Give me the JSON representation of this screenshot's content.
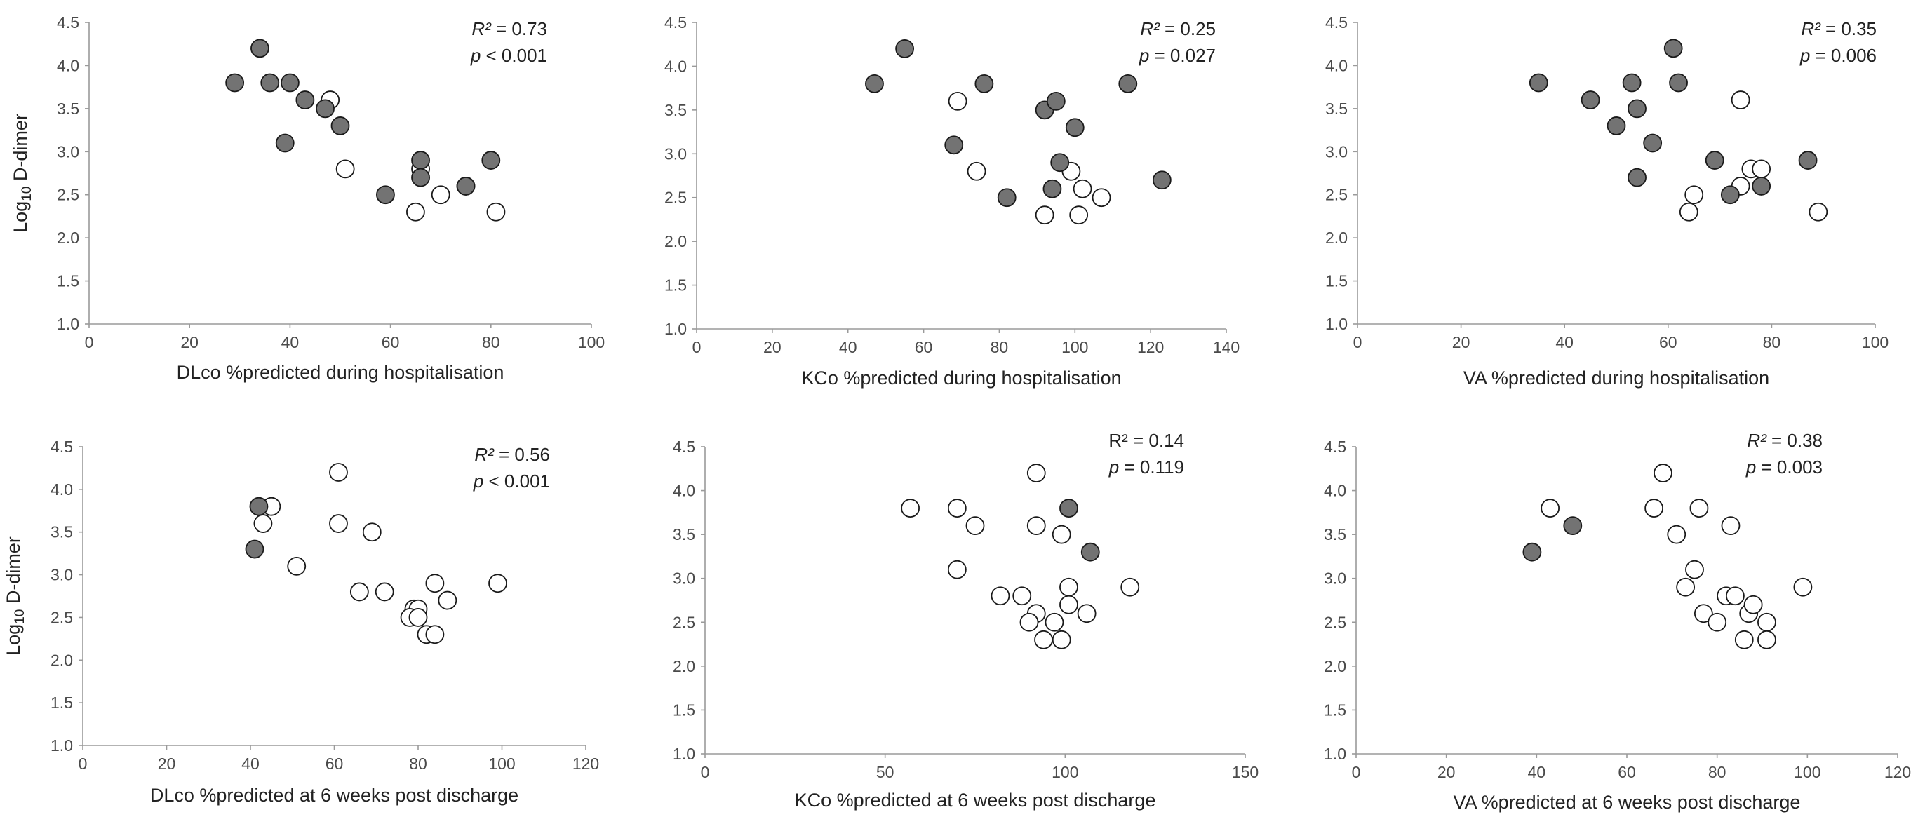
{
  "colors": {
    "filled": "#737373",
    "open": "#ffffff",
    "stroke": "#1a1a1a"
  },
  "chart_data": [
    {
      "type": "scatter",
      "xlabel": "DLco %predicted during hospitalisation",
      "ylabel": "Log10 D-dimer",
      "xlim": [
        0,
        100
      ],
      "xticks": [
        "0",
        "20",
        "40",
        "60",
        "80",
        "100"
      ],
      "ylim": [
        1.0,
        4.5
      ],
      "yticks": [
        "1.0",
        "1.5",
        "2.0",
        "2.5",
        "3.0",
        "3.5",
        "4.0",
        "4.5"
      ],
      "r2_label": "R² = 0.73",
      "p_label": "p < 0.001",
      "r2_italic": true,
      "filled": [
        [
          29,
          3.8
        ],
        [
          34,
          4.2
        ],
        [
          36,
          3.8
        ],
        [
          40,
          3.8
        ],
        [
          43,
          3.6
        ],
        [
          47,
          3.5
        ],
        [
          50,
          3.3
        ],
        [
          39,
          3.1
        ],
        [
          66,
          2.9
        ],
        [
          66,
          2.7
        ],
        [
          59,
          2.5
        ],
        [
          75,
          2.6
        ],
        [
          80,
          2.9
        ]
      ],
      "open": [
        [
          48,
          3.6
        ],
        [
          51,
          2.8
        ],
        [
          66,
          2.8
        ],
        [
          70,
          2.5
        ],
        [
          65,
          2.3
        ],
        [
          75,
          2.6
        ],
        [
          81,
          2.3
        ]
      ]
    },
    {
      "type": "scatter",
      "xlabel": "KCo %predicted during hospitalisation",
      "ylabel": "",
      "xlim": [
        0,
        140
      ],
      "xticks": [
        "0",
        "20",
        "40",
        "60",
        "80",
        "100",
        "120",
        "140"
      ],
      "ylim": [
        1.0,
        4.5
      ],
      "yticks": [
        "1.0",
        "1.5",
        "2.0",
        "2.5",
        "3.0",
        "3.5",
        "4.0",
        "4.5"
      ],
      "r2_label": "R² = 0.25",
      "p_label": "p = 0.027",
      "r2_italic": true,
      "filled": [
        [
          47,
          3.8
        ],
        [
          55,
          4.2
        ],
        [
          76,
          3.8
        ],
        [
          68,
          3.1
        ],
        [
          92,
          3.5
        ],
        [
          95,
          3.6
        ],
        [
          114,
          3.8
        ],
        [
          96,
          2.9
        ],
        [
          100,
          3.3
        ],
        [
          82,
          2.5
        ],
        [
          94,
          2.6
        ],
        [
          123,
          2.7
        ]
      ],
      "open": [
        [
          69,
          3.6
        ],
        [
          74,
          2.8
        ],
        [
          99,
          2.8
        ],
        [
          102,
          2.6
        ],
        [
          92,
          2.3
        ],
        [
          101,
          2.3
        ],
        [
          107,
          2.5
        ]
      ]
    },
    {
      "type": "scatter",
      "xlabel": "VA %predicted during hospitalisation",
      "ylabel": "",
      "xlim": [
        0,
        100
      ],
      "xticks": [
        "0",
        "20",
        "40",
        "60",
        "80",
        "100"
      ],
      "ylim": [
        1.0,
        4.5
      ],
      "yticks": [
        "1.0",
        "1.5",
        "2.0",
        "2.5",
        "3.0",
        "3.5",
        "4.0",
        "4.5"
      ],
      "r2_label": "R² = 0.35",
      "p_label": "p = 0.006",
      "r2_italic": true,
      "filled": [
        [
          35,
          3.8
        ],
        [
          45,
          3.6
        ],
        [
          50,
          3.3
        ],
        [
          53,
          3.8
        ],
        [
          54,
          3.5
        ],
        [
          54,
          2.7
        ],
        [
          57,
          3.1
        ],
        [
          61,
          4.2
        ],
        [
          62,
          3.8
        ],
        [
          69,
          2.9
        ],
        [
          72,
          2.5
        ],
        [
          78,
          2.6
        ],
        [
          87,
          2.9
        ]
      ],
      "open": [
        [
          74,
          3.6
        ],
        [
          65,
          2.5
        ],
        [
          64,
          2.3
        ],
        [
          74,
          2.6
        ],
        [
          76,
          2.8
        ],
        [
          78,
          2.8
        ],
        [
          89,
          2.3
        ]
      ]
    },
    {
      "type": "scatter",
      "xlabel": "DLco %predicted at 6 weeks post discharge",
      "ylabel": "Log10 D-dimer",
      "xlim": [
        0,
        120
      ],
      "xticks": [
        "0",
        "20",
        "40",
        "60",
        "80",
        "100",
        "120"
      ],
      "ylim": [
        1.0,
        4.5
      ],
      "yticks": [
        "1.0",
        "1.5",
        "2.0",
        "2.5",
        "3.0",
        "3.5",
        "4.0",
        "4.5"
      ],
      "r2_label": "R² = 0.56",
      "p_label": "p < 0.001",
      "r2_italic": true,
      "filled": [
        [
          42,
          3.8
        ],
        [
          41,
          3.3
        ]
      ],
      "open": [
        [
          45,
          3.8
        ],
        [
          43,
          3.6
        ],
        [
          61,
          4.2
        ],
        [
          61,
          3.6
        ],
        [
          69,
          3.5
        ],
        [
          51,
          3.1
        ],
        [
          66,
          2.8
        ],
        [
          72,
          2.8
        ],
        [
          79,
          2.6
        ],
        [
          80,
          2.6
        ],
        [
          78,
          2.5
        ],
        [
          80,
          2.5
        ],
        [
          84,
          2.9
        ],
        [
          87,
          2.7
        ],
        [
          99,
          2.9
        ],
        [
          82,
          2.3
        ],
        [
          84,
          2.3
        ]
      ]
    },
    {
      "type": "scatter",
      "xlabel": "KCo %predicted at 6 weeks post discharge",
      "ylabel": "",
      "xlim": [
        0,
        150
      ],
      "xticks": [
        "0",
        "50",
        "100",
        "150"
      ],
      "ylim": [
        1.0,
        4.5
      ],
      "yticks": [
        "1.0",
        "1.5",
        "2.0",
        "2.5",
        "3.0",
        "3.5",
        "4.0",
        "4.5"
      ],
      "r2_label": "R² = 0.14",
      "p_label": "p = 0.119",
      "r2_italic": false,
      "filled": [
        [
          101,
          3.8
        ],
        [
          107,
          3.3
        ]
      ],
      "open": [
        [
          57,
          3.8
        ],
        [
          70,
          3.8
        ],
        [
          75,
          3.6
        ],
        [
          92,
          4.2
        ],
        [
          92,
          3.6
        ],
        [
          99,
          3.5
        ],
        [
          70,
          3.1
        ],
        [
          82,
          2.8
        ],
        [
          88,
          2.8
        ],
        [
          92,
          2.6
        ],
        [
          90,
          2.5
        ],
        [
          97,
          2.5
        ],
        [
          94,
          2.3
        ],
        [
          99,
          2.3
        ],
        [
          101,
          2.9
        ],
        [
          101,
          2.7
        ],
        [
          106,
          2.6
        ],
        [
          118,
          2.9
        ]
      ]
    },
    {
      "type": "scatter",
      "xlabel": "VA %predicted at 6 weeks post discharge",
      "ylabel": "",
      "xlim": [
        0,
        120
      ],
      "xticks": [
        "0",
        "20",
        "40",
        "60",
        "80",
        "100",
        "120"
      ],
      "ylim": [
        1.0,
        4.5
      ],
      "yticks": [
        "1.0",
        "1.5",
        "2.0",
        "2.5",
        "3.0",
        "3.5",
        "4.0",
        "4.5"
      ],
      "r2_label": "R² = 0.38",
      "p_label": "p = 0.003",
      "r2_italic": true,
      "filled": [
        [
          39,
          3.3
        ],
        [
          48,
          3.6
        ]
      ],
      "open": [
        [
          43,
          3.8
        ],
        [
          66,
          3.8
        ],
        [
          68,
          4.2
        ],
        [
          76,
          3.8
        ],
        [
          71,
          3.5
        ],
        [
          83,
          3.6
        ],
        [
          75,
          3.1
        ],
        [
          73,
          2.9
        ],
        [
          77,
          2.6
        ],
        [
          80,
          2.5
        ],
        [
          82,
          2.8
        ],
        [
          84,
          2.8
        ],
        [
          87,
          2.6
        ],
        [
          88,
          2.7
        ],
        [
          86,
          2.3
        ],
        [
          91,
          2.5
        ],
        [
          91,
          2.3
        ],
        [
          99,
          2.9
        ]
      ]
    }
  ]
}
